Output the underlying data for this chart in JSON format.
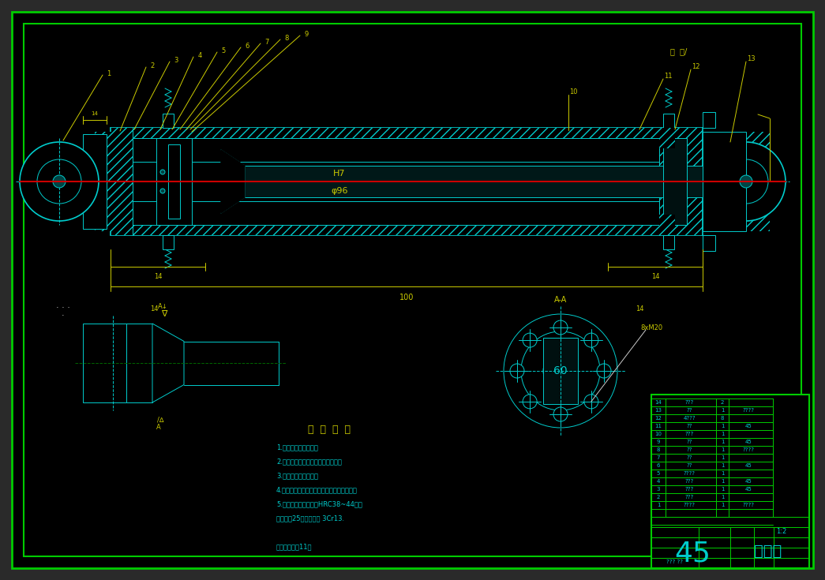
{
  "bg_color": "#000000",
  "border_color": "#00cc00",
  "cyan_color": "#00cccc",
  "yellow_color": "#cccc00",
  "red_color": "#cc0000",
  "white_color": "#cccccc",
  "green_color": "#008800",
  "title_text": "液压缸",
  "drawing_number": "45",
  "scale": "1:2",
  "tech_req_title": "技  术  要  求",
  "tech_req_lines": [
    "1.未注明倒角均为倒角",
    "2.液压缸内孔和活塞杆表面渗碳处理",
    "3.液压缸内孔光滑配合",
    "4.活塞杆拆安时注意液压缸内孔表面不被划伤",
    "5.活塞杆表面硬度要求HRC38~44，材",
    "料：预蜈25号锂；符合 3Cr13.",
    "",
    "标记：车水兖11号"
  ],
  "table_rows": [
    {
      "num": "14",
      "name": "???",
      "qty": "2",
      "material": ""
    },
    {
      "num": "13",
      "name": "??",
      "qty": "1",
      "material": "????"
    },
    {
      "num": "12",
      "name": "4???",
      "qty": "8",
      "material": ""
    },
    {
      "num": "11",
      "name": "??",
      "qty": "1",
      "material": "45"
    },
    {
      "num": "10",
      "name": "???",
      "qty": "1",
      "material": ""
    },
    {
      "num": "9",
      "name": "??",
      "qty": "1",
      "material": "45"
    },
    {
      "num": "8",
      "name": "??",
      "qty": "1",
      "material": "????"
    },
    {
      "num": "7",
      "name": "??",
      "qty": "1",
      "material": ""
    },
    {
      "num": "6",
      "name": "??",
      "qty": "1",
      "material": "45"
    },
    {
      "num": "5",
      "name": "????",
      "qty": "1",
      "material": ""
    },
    {
      "num": "4",
      "name": "???",
      "qty": "1",
      "material": "45"
    },
    {
      "num": "3",
      "name": "???",
      "qty": "1",
      "material": "45"
    },
    {
      "num": "2",
      "name": "???",
      "qty": "1",
      "material": ""
    },
    {
      "num": "1",
      "name": "????",
      "qty": "1",
      "material": "????"
    }
  ]
}
